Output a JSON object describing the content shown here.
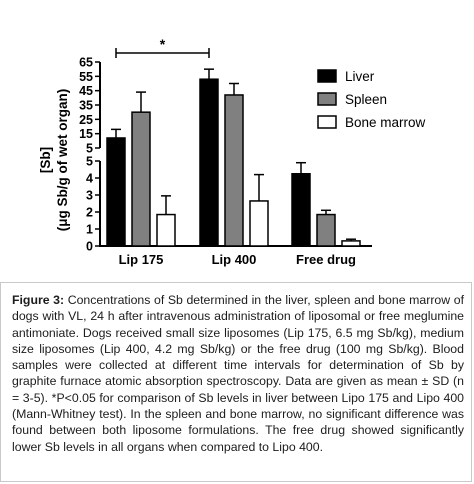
{
  "chart_data": {
    "type": "bar",
    "ylabel_line1": "[Sb]",
    "ylabel_line2": "(μg Sb/g of wet organ)",
    "categories": [
      "Lip 175",
      "Lip 400",
      "Free drug"
    ],
    "series": [
      {
        "name": "Liver",
        "color": "#000000",
        "values": [
          12,
          53,
          4.25
        ],
        "errors": [
          6,
          7,
          0.65
        ]
      },
      {
        "name": "Spleen",
        "color": "#808080",
        "values": [
          30,
          42,
          1.85
        ],
        "errors": [
          14,
          8,
          0.25
        ]
      },
      {
        "name": "Bone marrow",
        "color": "#ffffff",
        "values": [
          1.85,
          2.65,
          0.3
        ],
        "errors": [
          1.1,
          1.55,
          0.1
        ]
      }
    ],
    "y_broken_axis": {
      "lower_range": [
        0,
        5
      ],
      "upper_range": [
        5,
        65
      ],
      "lower_ticks": [
        "0",
        "1",
        "2",
        "3",
        "4",
        "5"
      ],
      "upper_ticks": [
        "5",
        "15",
        "25",
        "35",
        "45",
        "55",
        "65"
      ]
    },
    "significance": {
      "label": "*",
      "from_category": "Lip 175",
      "to_category": "Lip 400"
    },
    "legend_position": "top-right",
    "grid": false
  },
  "caption": {
    "figure_label": "Figure 3:",
    "text": " Concentrations of Sb determined in the liver, spleen and bone marrow of dogs with VL, 24 h after intravenous administration of liposomal or free meglumine antimoniate. Dogs received small size liposomes (Lip 175, 6.5 mg Sb/kg), medium size liposomes (Lip 400, 4.2 mg Sb/kg) or the free drug (100 mg Sb/kg). Blood samples were collected at different time intervals for determination of Sb by graphite furnace atomic absorption spectroscopy. Data are given as mean ± SD (n = 3-5). *P<0.05 for comparison of Sb levels in liver between Lipo 175 and Lipo 400 (Mann-Whitney test). In the spleen and bone marrow, no significant difference was found between both liposome formulations. The free drug showed significantly lower Sb levels in all organs when compared to Lipo 400."
  }
}
